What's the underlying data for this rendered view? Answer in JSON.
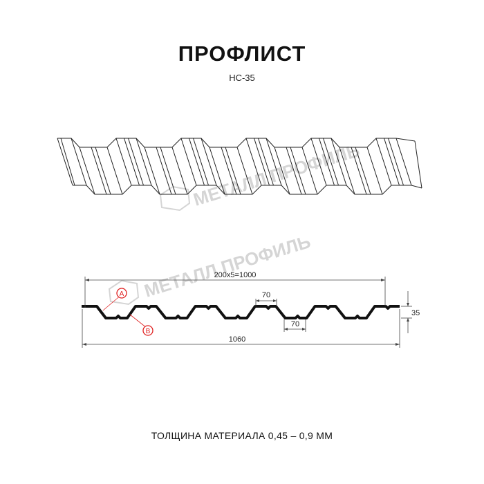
{
  "header": {
    "title": "ПРОФЛИСТ",
    "subtitle": "НС-35"
  },
  "watermark": {
    "text": "МЕТАЛЛ ПРОФИЛЬ"
  },
  "drawing": {
    "dim_pitch": "200x5=1000",
    "dim_top_width": "70",
    "dim_bottom_width": "70",
    "dim_height": "35",
    "dim_total": "1060",
    "marker_a": "A",
    "marker_b": "B",
    "marker_color": "#e02020"
  },
  "footer": {
    "thickness": "ТОЛЩИНА МАТЕРИАЛА 0,45 – 0,9 ММ"
  }
}
